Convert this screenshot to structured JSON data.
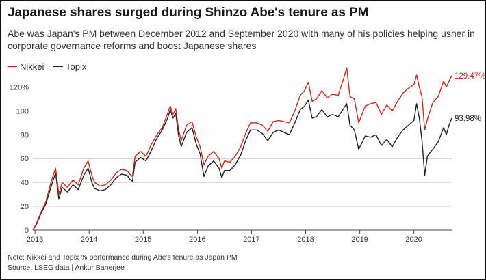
{
  "title": "Japanese shares surged during Shinzo Abe's tenure as PM",
  "subtitle": "Abe was Japan's PM between December 2012 and September 2020 with many of his policies helping usher in corporate governance reforms and boost Japanese shares",
  "note": "Note: Nikkei and Topix % performance during Abe's tenure as Japan PM",
  "source": "Source: LSEG data  | Ankur Banerjee",
  "colors": {
    "nikkei": "#c8281e",
    "topix": "#231f20",
    "grid": "#bcbcbc",
    "axis": "#444444"
  },
  "chart_data": {
    "type": "line",
    "xlabel": "",
    "ylabel": "",
    "xlim": [
      2012.96,
      2020.7
    ],
    "ylim": [
      0,
      130
    ],
    "x_ticks": [
      {
        "value": 2013,
        "label": "2013"
      },
      {
        "value": 2014,
        "label": "2014"
      },
      {
        "value": 2015,
        "label": "2015"
      },
      {
        "value": 2016,
        "label": "2016"
      },
      {
        "value": 2017,
        "label": "2017"
      },
      {
        "value": 2018,
        "label": "2018"
      },
      {
        "value": 2019,
        "label": "2019"
      },
      {
        "value": 2020,
        "label": "2020"
      }
    ],
    "y_ticks": [
      {
        "value": 0,
        "label": "0"
      },
      {
        "value": 20,
        "label": "20"
      },
      {
        "value": 40,
        "label": "40"
      },
      {
        "value": 60,
        "label": "60"
      },
      {
        "value": 80,
        "label": "80"
      },
      {
        "value": 100,
        "label": "100"
      },
      {
        "value": 120,
        "label": "120%"
      }
    ],
    "grid": true,
    "legend": "top-left",
    "series": [
      {
        "name": "Nikkei",
        "end_label": "129.47%",
        "points": [
          [
            2012.96,
            0
          ],
          [
            2013.02,
            5
          ],
          [
            2013.1,
            14
          ],
          [
            2013.2,
            24
          ],
          [
            2013.3,
            41
          ],
          [
            2013.38,
            52
          ],
          [
            2013.44,
            30
          ],
          [
            2013.5,
            40
          ],
          [
            2013.6,
            36
          ],
          [
            2013.7,
            42
          ],
          [
            2013.8,
            38
          ],
          [
            2013.9,
            52
          ],
          [
            2013.98,
            58
          ],
          [
            2014.05,
            46
          ],
          [
            2014.1,
            40
          ],
          [
            2014.2,
            37
          ],
          [
            2014.3,
            38
          ],
          [
            2014.4,
            42
          ],
          [
            2014.5,
            48
          ],
          [
            2014.6,
            51
          ],
          [
            2014.7,
            50
          ],
          [
            2014.75,
            47
          ],
          [
            2014.8,
            45
          ],
          [
            2014.85,
            62
          ],
          [
            2014.95,
            66
          ],
          [
            2015.05,
            62
          ],
          [
            2015.15,
            72
          ],
          [
            2015.25,
            80
          ],
          [
            2015.35,
            86
          ],
          [
            2015.45,
            98
          ],
          [
            2015.5,
            104
          ],
          [
            2015.55,
            97
          ],
          [
            2015.6,
            102
          ],
          [
            2015.65,
            85
          ],
          [
            2015.7,
            75
          ],
          [
            2015.8,
            88
          ],
          [
            2015.9,
            91
          ],
          [
            2015.98,
            78
          ],
          [
            2016.05,
            70
          ],
          [
            2016.12,
            55
          ],
          [
            2016.2,
            62
          ],
          [
            2016.3,
            66
          ],
          [
            2016.4,
            60
          ],
          [
            2016.45,
            52
          ],
          [
            2016.5,
            58
          ],
          [
            2016.6,
            57
          ],
          [
            2016.7,
            62
          ],
          [
            2016.8,
            70
          ],
          [
            2016.9,
            82
          ],
          [
            2016.98,
            90
          ],
          [
            2017.1,
            90
          ],
          [
            2017.2,
            88
          ],
          [
            2017.3,
            83
          ],
          [
            2017.4,
            91
          ],
          [
            2017.5,
            92
          ],
          [
            2017.6,
            91
          ],
          [
            2017.7,
            90
          ],
          [
            2017.8,
            100
          ],
          [
            2017.9,
            113
          ],
          [
            2017.98,
            117
          ],
          [
            2018.05,
            124
          ],
          [
            2018.12,
            108
          ],
          [
            2018.2,
            110
          ],
          [
            2018.3,
            117
          ],
          [
            2018.4,
            111
          ],
          [
            2018.5,
            114
          ],
          [
            2018.6,
            113
          ],
          [
            2018.7,
            127
          ],
          [
            2018.76,
            136
          ],
          [
            2018.82,
            112
          ],
          [
            2018.9,
            110
          ],
          [
            2018.98,
            90
          ],
          [
            2019.05,
            98
          ],
          [
            2019.1,
            104
          ],
          [
            2019.2,
            106
          ],
          [
            2019.3,
            107
          ],
          [
            2019.4,
            97
          ],
          [
            2019.5,
            105
          ],
          [
            2019.6,
            100
          ],
          [
            2019.7,
            108
          ],
          [
            2019.8,
            115
          ],
          [
            2019.9,
            119
          ],
          [
            2020.0,
            122
          ],
          [
            2020.05,
            130
          ],
          [
            2020.1,
            120
          ],
          [
            2020.15,
            112
          ],
          [
            2020.2,
            84
          ],
          [
            2020.25,
            93
          ],
          [
            2020.35,
            107
          ],
          [
            2020.45,
            112
          ],
          [
            2020.55,
            125
          ],
          [
            2020.6,
            120
          ],
          [
            2020.65,
            125
          ],
          [
            2020.7,
            129.47
          ]
        ]
      },
      {
        "name": "Topix",
        "end_label": "93.98%",
        "points": [
          [
            2012.96,
            0
          ],
          [
            2013.02,
            4
          ],
          [
            2013.1,
            13
          ],
          [
            2013.2,
            22
          ],
          [
            2013.3,
            37
          ],
          [
            2013.38,
            48
          ],
          [
            2013.44,
            26
          ],
          [
            2013.5,
            36
          ],
          [
            2013.6,
            32
          ],
          [
            2013.7,
            38
          ],
          [
            2013.8,
            34
          ],
          [
            2013.9,
            46
          ],
          [
            2013.98,
            52
          ],
          [
            2014.05,
            40
          ],
          [
            2014.1,
            35
          ],
          [
            2014.2,
            33
          ],
          [
            2014.3,
            34
          ],
          [
            2014.4,
            38
          ],
          [
            2014.5,
            44
          ],
          [
            2014.6,
            47
          ],
          [
            2014.7,
            46
          ],
          [
            2014.75,
            43
          ],
          [
            2014.8,
            41
          ],
          [
            2014.85,
            57
          ],
          [
            2014.95,
            61
          ],
          [
            2015.05,
            58
          ],
          [
            2015.15,
            67
          ],
          [
            2015.25,
            77
          ],
          [
            2015.35,
            84
          ],
          [
            2015.45,
            94
          ],
          [
            2015.5,
            101
          ],
          [
            2015.55,
            94
          ],
          [
            2015.6,
            98
          ],
          [
            2015.65,
            80
          ],
          [
            2015.7,
            70
          ],
          [
            2015.8,
            82
          ],
          [
            2015.9,
            86
          ],
          [
            2015.98,
            72
          ],
          [
            2016.05,
            64
          ],
          [
            2016.12,
            45
          ],
          [
            2016.2,
            54
          ],
          [
            2016.3,
            58
          ],
          [
            2016.4,
            52
          ],
          [
            2016.45,
            44
          ],
          [
            2016.5,
            50
          ],
          [
            2016.6,
            50
          ],
          [
            2016.7,
            55
          ],
          [
            2016.8,
            63
          ],
          [
            2016.9,
            76
          ],
          [
            2016.98,
            84
          ],
          [
            2017.1,
            84
          ],
          [
            2017.2,
            81
          ],
          [
            2017.3,
            75
          ],
          [
            2017.4,
            82
          ],
          [
            2017.5,
            84
          ],
          [
            2017.6,
            82
          ],
          [
            2017.7,
            80
          ],
          [
            2017.8,
            90
          ],
          [
            2017.9,
            101
          ],
          [
            2017.98,
            104
          ],
          [
            2018.05,
            109
          ],
          [
            2018.12,
            94
          ],
          [
            2018.2,
            95
          ],
          [
            2018.3,
            101
          ],
          [
            2018.4,
            95
          ],
          [
            2018.5,
            97
          ],
          [
            2018.6,
            95
          ],
          [
            2018.7,
            102
          ],
          [
            2018.76,
            106
          ],
          [
            2018.82,
            88
          ],
          [
            2018.9,
            84
          ],
          [
            2018.98,
            68
          ],
          [
            2019.05,
            74
          ],
          [
            2019.1,
            79
          ],
          [
            2019.2,
            78
          ],
          [
            2019.3,
            80
          ],
          [
            2019.4,
            71
          ],
          [
            2019.5,
            76
          ],
          [
            2019.6,
            70
          ],
          [
            2019.7,
            78
          ],
          [
            2019.8,
            84
          ],
          [
            2019.9,
            88
          ],
          [
            2020.0,
            92
          ],
          [
            2020.05,
            106
          ],
          [
            2020.1,
            94
          ],
          [
            2020.15,
            75
          ],
          [
            2020.2,
            46
          ],
          [
            2020.25,
            62
          ],
          [
            2020.35,
            68
          ],
          [
            2020.45,
            74
          ],
          [
            2020.55,
            86
          ],
          [
            2020.6,
            80
          ],
          [
            2020.65,
            88
          ],
          [
            2020.7,
            93.98
          ]
        ]
      }
    ]
  }
}
